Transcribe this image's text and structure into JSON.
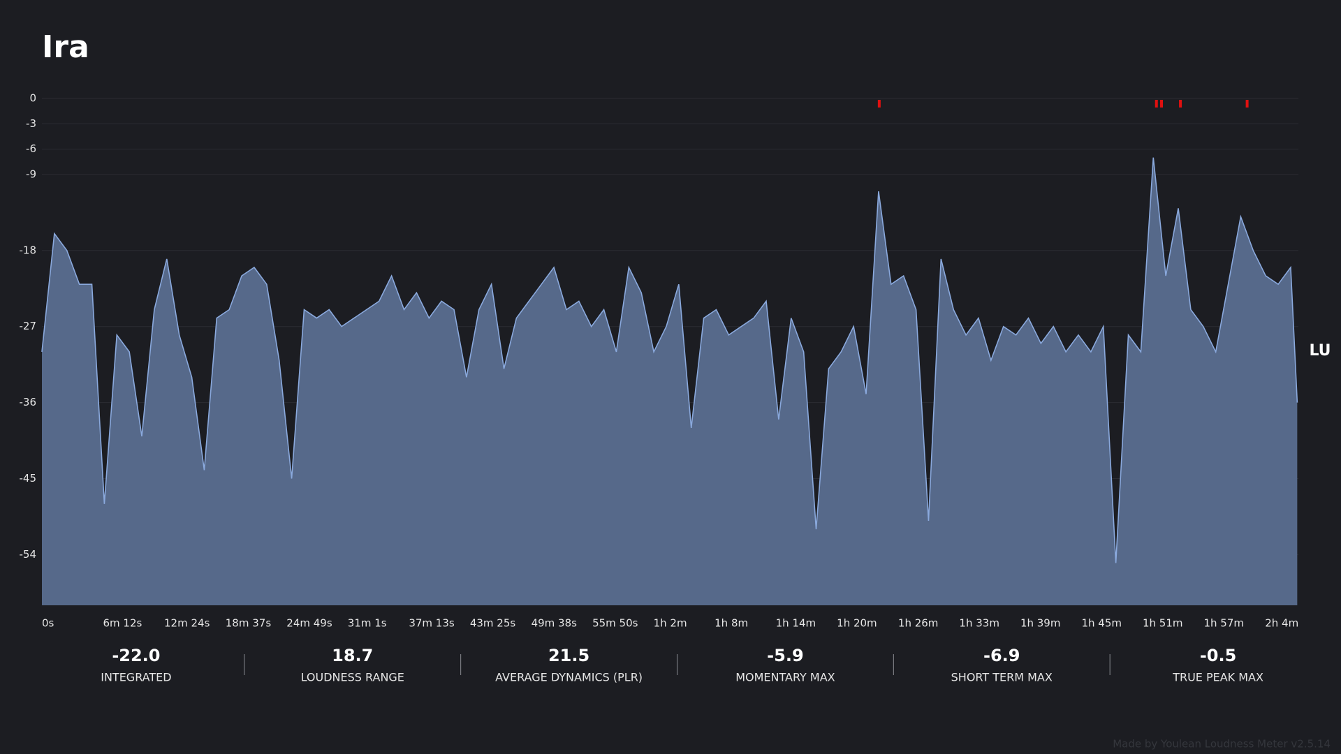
{
  "chart_data": {
    "type": "area",
    "title": "Ira",
    "y_label": "LU",
    "color": "#8aa9dd",
    "fill_color": "#56698a",
    "grid": true,
    "ylim": [
      -60,
      0
    ],
    "yticks": [
      0,
      -3,
      -6,
      -9,
      -18,
      -27,
      -36,
      -45,
      -54
    ],
    "xlim": [
      0,
      7647
    ],
    "xticks": [
      {
        "value": 0,
        "label": "0s"
      },
      {
        "value": 372,
        "label": "6m 12s"
      },
      {
        "value": 744,
        "label": "12m 24s"
      },
      {
        "value": 1117,
        "label": "18m 37s"
      },
      {
        "value": 1489,
        "label": "24m 49s"
      },
      {
        "value": 1861,
        "label": "31m 1s"
      },
      {
        "value": 2233,
        "label": "37m 13s"
      },
      {
        "value": 2605,
        "label": "43m 25s"
      },
      {
        "value": 2978,
        "label": "49m 38s"
      },
      {
        "value": 3350,
        "label": "55m 50s"
      },
      {
        "value": 3722,
        "label": "1h 2m"
      },
      {
        "value": 4094,
        "label": "1h 8m"
      },
      {
        "value": 4466,
        "label": "1h 14m"
      },
      {
        "value": 4838,
        "label": "1h 20m"
      },
      {
        "value": 5211,
        "label": "1h 26m"
      },
      {
        "value": 5583,
        "label": "1h 33m"
      },
      {
        "value": 5955,
        "label": "1h 39m"
      },
      {
        "value": 6327,
        "label": "1h 45m"
      },
      {
        "value": 6699,
        "label": "1h 51m"
      },
      {
        "value": 7071,
        "label": "1h 57m"
      },
      {
        "value": 7444,
        "label": "2h 4m"
      }
    ],
    "x": [
      0,
      76,
      152,
      228,
      304,
      380,
      456,
      532,
      608,
      684,
      760,
      836,
      912,
      988,
      1064,
      1140,
      1216,
      1292,
      1368,
      1444,
      1520,
      1596,
      1672,
      1748,
      1824,
      1900,
      1976,
      2052,
      2128,
      2204,
      2280,
      2356,
      2432,
      2508,
      2584,
      2660,
      2736,
      2812,
      2888,
      2964,
      3040,
      3116,
      3192,
      3268,
      3344,
      3420,
      3496,
      3572,
      3648,
      3724,
      3800,
      3876,
      3952,
      4028,
      4104,
      4180,
      4256,
      4332,
      4408,
      4484,
      4560,
      4636,
      4712,
      4788,
      4864,
      4940,
      5016,
      5092,
      5168,
      5244,
      5320,
      5396,
      5472,
      5548,
      5624,
      5700,
      5776,
      5852,
      5928,
      6004,
      6080,
      6156,
      6232,
      6308,
      6384,
      6460,
      6536,
      6612,
      6688,
      6764,
      6840,
      6916,
      6992,
      7068,
      7144,
      7220,
      7296,
      7372,
      7448,
      7524,
      7600,
      7640
    ],
    "values": [
      -30,
      -16,
      -18,
      -22,
      -22,
      -48,
      -28,
      -30,
      -40,
      -25,
      -19,
      -28,
      -33,
      -44,
      -26,
      -25,
      -21,
      -20,
      -22,
      -31,
      -45,
      -25,
      -26,
      -25,
      -27,
      -26,
      -25,
      -24,
      -21,
      -25,
      -23,
      -26,
      -24,
      -25,
      -33,
      -25,
      -22,
      -32,
      -26,
      -24,
      -22,
      -20,
      -25,
      -24,
      -27,
      -25,
      -30,
      -20,
      -23,
      -30,
      -27,
      -22,
      -39,
      -26,
      -25,
      -28,
      -27,
      -26,
      -24,
      -38,
      -26,
      -30,
      -51,
      -32,
      -30,
      -27,
      -35,
      -11,
      -22,
      -21,
      -25,
      -50,
      -19,
      -25,
      -28,
      -26,
      -31,
      -27,
      -28,
      -26,
      -29,
      -27,
      -30,
      -28,
      -30,
      -27,
      -55,
      -28,
      -30,
      -7,
      -21,
      -13,
      -25,
      -27,
      -30,
      -22,
      -14,
      -18,
      -21,
      -22,
      -20,
      -36
    ],
    "peak_markers": [
      5096,
      6783,
      6814,
      6929,
      7335
    ],
    "peak_color": "#e01010",
    "stats": [
      {
        "name": "INTEGRATED",
        "value": -22,
        "value_label": "-22.0"
      },
      {
        "name": "LOUDNESS RANGE",
        "value": 18.7
      },
      {
        "name": "AVERAGE DYNAMICS (PLR)",
        "value": 21.5
      },
      {
        "name": "MOMENTARY MAX",
        "value": -5.9
      },
      {
        "name": "SHORT TERM MAX",
        "value": -6.9
      },
      {
        "name": "TRUE PEAK MAX",
        "value": -0.5
      }
    ],
    "footer": "Made by Youlean Loudness Meter v2.5.14"
  }
}
